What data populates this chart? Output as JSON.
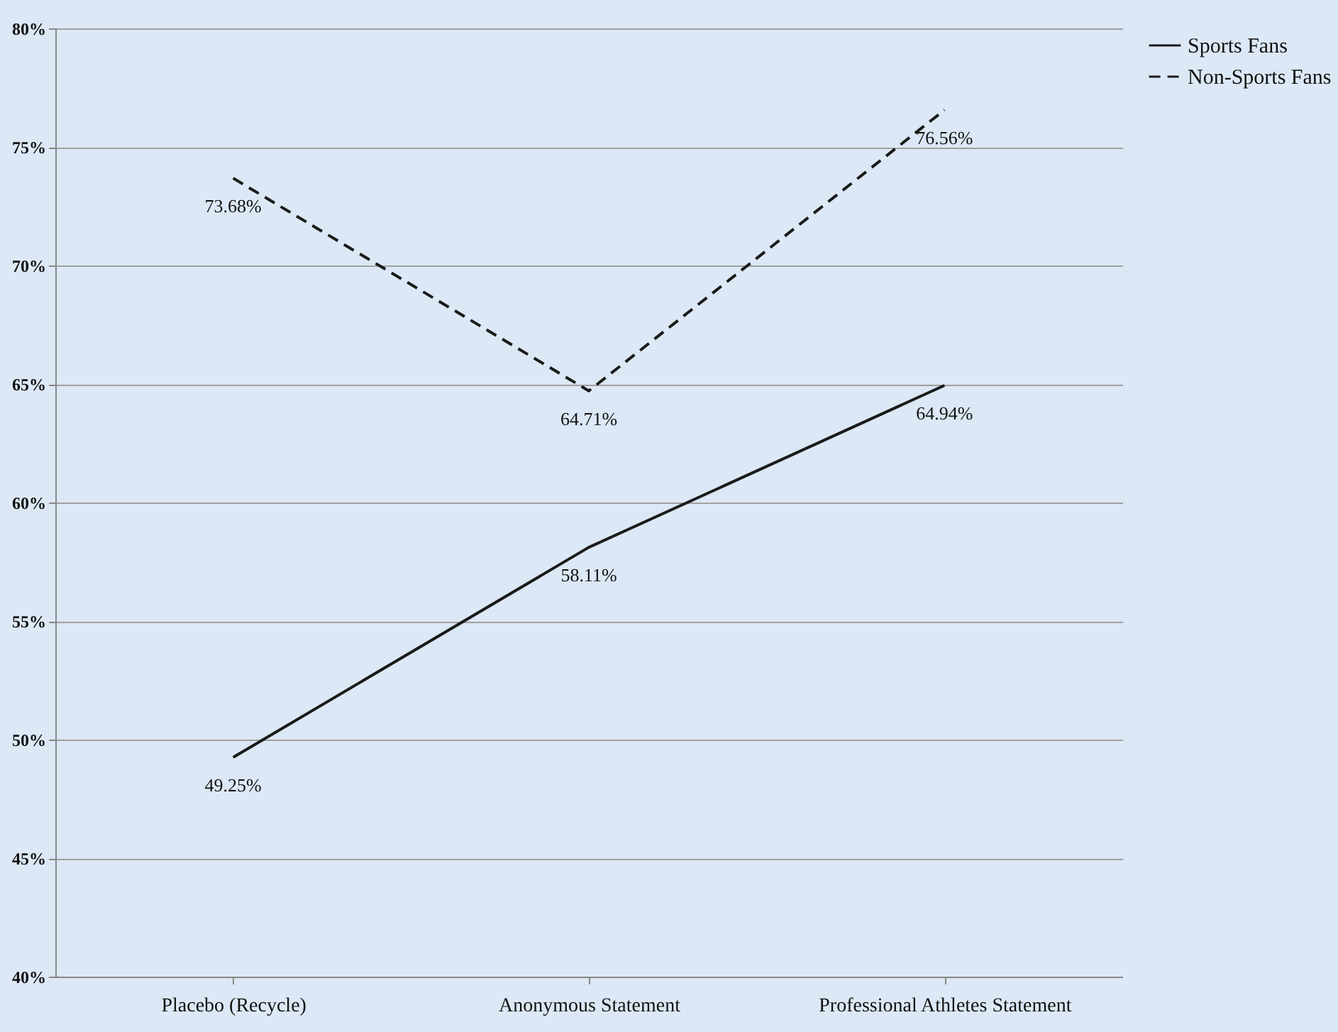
{
  "chart_data": {
    "type": "line",
    "categories": [
      "Placebo (Recycle)",
      "Anonymous Statement",
      "Professional Athletes Statement"
    ],
    "series": [
      {
        "name": "Sports Fans",
        "color": "#1a1a1a",
        "line_style": "solid",
        "values": [
          49.25,
          58.11,
          64.94
        ],
        "value_labels": [
          "49.25%",
          "58.11%",
          "64.94%"
        ]
      },
      {
        "name": "Non-Sports Fans",
        "color": "#1a1a1a",
        "line_style": "dashed",
        "values": [
          73.68,
          64.71,
          76.56
        ],
        "value_labels": [
          "73.68%",
          "64.71%",
          "76.56%"
        ]
      }
    ],
    "ylim": [
      40,
      80
    ],
    "yticks": [
      {
        "value": 40,
        "label": "40%"
      },
      {
        "value": 45,
        "label": "45%"
      },
      {
        "value": 50,
        "label": "50%"
      },
      {
        "value": 55,
        "label": "55%"
      },
      {
        "value": 60,
        "label": "60%"
      },
      {
        "value": 65,
        "label": "65%"
      },
      {
        "value": 70,
        "label": "70%"
      },
      {
        "value": 75,
        "label": "75%"
      },
      {
        "value": 80,
        "label": "80%"
      }
    ],
    "grid": "y",
    "legend": "right",
    "marker": "none"
  }
}
